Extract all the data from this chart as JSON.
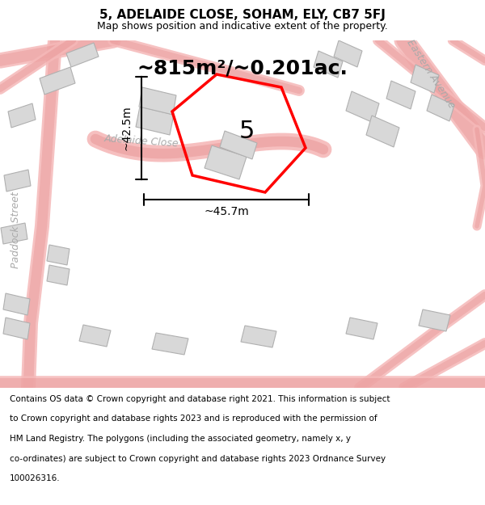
{
  "title": "5, ADELAIDE CLOSE, SOHAM, ELY, CB7 5FJ",
  "subtitle": "Map shows position and indicative extent of the property.",
  "area_text": "~815m²/~0.201ac.",
  "dim_width": "~45.7m",
  "dim_height": "~42.5m",
  "property_number": "5",
  "footer_lines": [
    "Contains OS data © Crown copyright and database right 2021. This information is subject",
    "to Crown copyright and database rights 2023 and is reproduced with the permission of",
    "HM Land Registry. The polygons (including the associated geometry, namely x, y",
    "co-ordinates) are subject to Crown copyright and database rights 2023 Ordnance Survey",
    "100026316."
  ],
  "map_bg": "#ffffff",
  "road_color": "#f5b8b8",
  "road_edge_color": "#e08080",
  "building_fill": "#d8d8d8",
  "building_edge": "#b0b0b0",
  "property_color": "#ff0000",
  "text_color": "#000000",
  "title_fontsize": 11,
  "subtitle_fontsize": 9,
  "area_fontsize": 18,
  "dim_fontsize": 10,
  "number_fontsize": 22,
  "footer_fontsize": 7.5,
  "road_label_fontsize": 9
}
